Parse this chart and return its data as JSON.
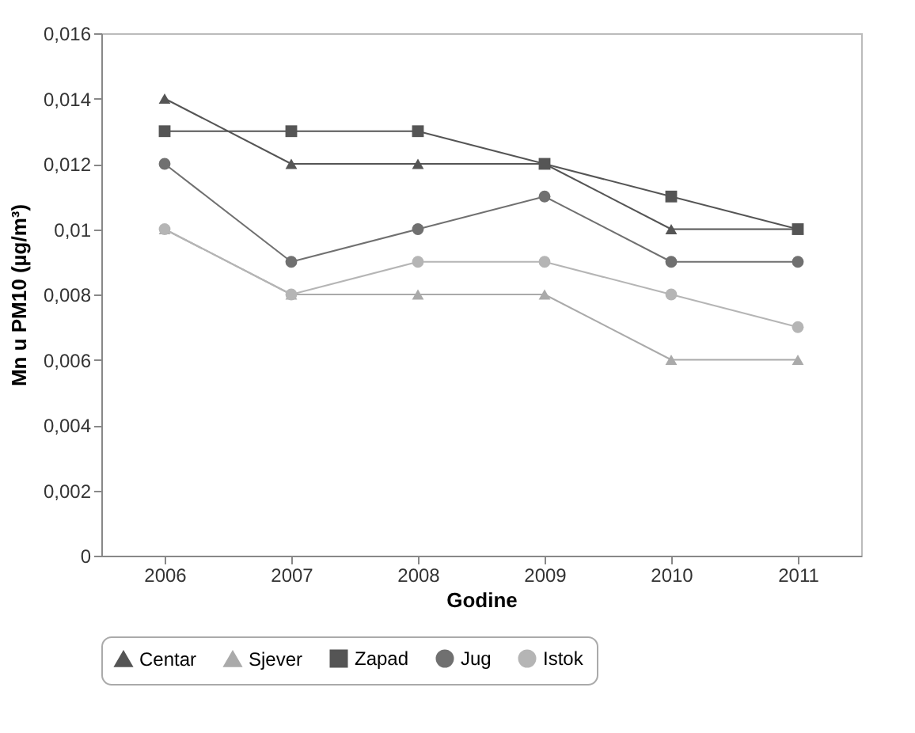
{
  "chart_data": {
    "type": "line",
    "xlabel": "Godine",
    "ylabel": "Mn u PM10 (µg/m³)",
    "categories": [
      "2006",
      "2007",
      "2008",
      "2009",
      "2010",
      "2011"
    ],
    "series": [
      {
        "name": "Centar",
        "color": "#555555",
        "marker": "triangle",
        "values": [
          0.014,
          0.012,
          0.012,
          0.012,
          0.01,
          0.01
        ]
      },
      {
        "name": "Sjever",
        "color": "#aaaaaa",
        "marker": "triangle",
        "values": [
          0.01,
          0.008,
          0.008,
          0.008,
          0.006,
          0.006
        ]
      },
      {
        "name": "Zapad",
        "color": "#555555",
        "marker": "square",
        "values": [
          0.013,
          0.013,
          0.013,
          0.012,
          0.011,
          0.01
        ]
      },
      {
        "name": "Jug",
        "color": "#707070",
        "marker": "circle",
        "values": [
          0.012,
          0.009,
          0.01,
          0.011,
          0.009,
          0.009
        ]
      },
      {
        "name": "Istok",
        "color": "#b5b5b5",
        "marker": "circle",
        "values": [
          0.01,
          0.008,
          0.009,
          0.009,
          0.008,
          0.007
        ]
      }
    ],
    "ylim": [
      0,
      0.016
    ],
    "yticks": [
      0,
      {
        "value": 0.002,
        "label": "0,002"
      },
      {
        "value": 0.004,
        "label": "0,004"
      },
      {
        "value": 0.006,
        "label": "0,006"
      },
      {
        "value": 0.008,
        "label": "0,008"
      },
      {
        "value": 0.01,
        "label": "0,01"
      },
      {
        "value": 0.012,
        "label": "0,012"
      },
      {
        "value": 0.014,
        "label": "0,014"
      },
      {
        "value": 0.016,
        "label": "0,016"
      }
    ],
    "grid": false,
    "legend": "bottom"
  }
}
